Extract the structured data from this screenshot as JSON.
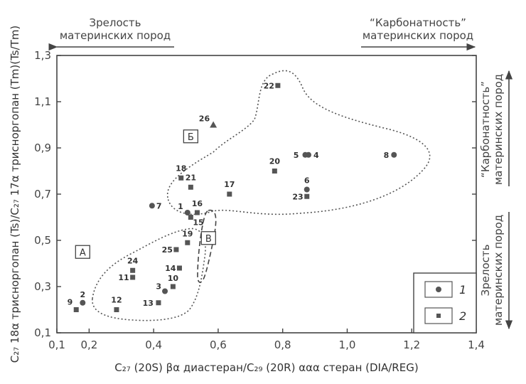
{
  "chart_data": {
    "type": "scatter",
    "xlabel": "C₂₇ (20S) βα диастеран/C₂₉ (20R) ααα стеран (DIA/REG)",
    "ylabel": "C₂₇ 18α трисноргопан (Ts)/C₂₇ 17α трисноргопан (Tm)(Ts/Tm)",
    "xlim": [
      0.1,
      1.4
    ],
    "ylim": [
      0.1,
      1.3
    ],
    "x_ticks": [
      "0,1",
      "0,2",
      "0,4",
      "0,6",
      "0,8",
      "1,0",
      "1,2",
      "1,4"
    ],
    "x_tick_values": [
      0.1,
      0.2,
      0.4,
      0.6,
      0.8,
      1.0,
      1.2,
      1.4
    ],
    "y_ticks": [
      "0,1",
      "0,3",
      "0,5",
      "0,7",
      "0,9",
      "1,1",
      "1,3"
    ],
    "y_tick_values": [
      0.1,
      0.3,
      0.5,
      0.7,
      0.9,
      1.1,
      1.3
    ],
    "top_left": {
      "line1": "Зрелость",
      "line2": "материнских пород"
    },
    "top_right": {
      "line1": "“Карбонатность”",
      "line2": "материнских пород"
    },
    "right_top": {
      "line1": "“Карбонатность”",
      "line2": "материнских пород"
    },
    "right_bottom": {
      "line1": "Зрелость",
      "line2": "материнских пород"
    },
    "regions": [
      {
        "label": "А",
        "x": 0.18,
        "y": 0.45
      },
      {
        "label": "Б",
        "x": 0.515,
        "y": 0.95
      },
      {
        "label": "В",
        "x": 0.57,
        "y": 0.51
      }
    ],
    "legend": [
      {
        "marker": "circle",
        "label": "1"
      },
      {
        "marker": "square",
        "label": "2"
      }
    ],
    "points": [
      {
        "id": "1",
        "x": 0.505,
        "y": 0.62,
        "marker": "circle"
      },
      {
        "id": "2",
        "x": 0.18,
        "y": 0.23,
        "marker": "circle"
      },
      {
        "id": "3",
        "x": 0.435,
        "y": 0.28,
        "marker": "circle"
      },
      {
        "id": "4",
        "x": 0.88,
        "y": 0.87,
        "marker": "circle"
      },
      {
        "id": "5",
        "x": 0.87,
        "y": 0.87,
        "marker": "circle"
      },
      {
        "id": "6",
        "x": 0.875,
        "y": 0.72,
        "marker": "circle"
      },
      {
        "id": "7",
        "x": 0.395,
        "y": 0.65,
        "marker": "circle"
      },
      {
        "id": "8",
        "x": 1.145,
        "y": 0.87,
        "marker": "circle"
      },
      {
        "id": "9",
        "x": 0.16,
        "y": 0.2,
        "marker": "square"
      },
      {
        "id": "10",
        "x": 0.46,
        "y": 0.3,
        "marker": "square"
      },
      {
        "id": "11",
        "x": 0.335,
        "y": 0.34,
        "marker": "square"
      },
      {
        "id": "12",
        "x": 0.285,
        "y": 0.2,
        "marker": "square"
      },
      {
        "id": "13",
        "x": 0.415,
        "y": 0.23,
        "marker": "square"
      },
      {
        "id": "14",
        "x": 0.48,
        "y": 0.38,
        "marker": "square"
      },
      {
        "id": "15",
        "x": 0.515,
        "y": 0.6,
        "marker": "square"
      },
      {
        "id": "16",
        "x": 0.535,
        "y": 0.62,
        "marker": "square"
      },
      {
        "id": "17",
        "x": 0.635,
        "y": 0.7,
        "marker": "square"
      },
      {
        "id": "18",
        "x": 0.485,
        "y": 0.77,
        "marker": "square"
      },
      {
        "id": "19",
        "x": 0.505,
        "y": 0.49,
        "marker": "square"
      },
      {
        "id": "20",
        "x": 0.775,
        "y": 0.8,
        "marker": "square"
      },
      {
        "id": "21",
        "x": 0.515,
        "y": 0.73,
        "marker": "square"
      },
      {
        "id": "22",
        "x": 0.785,
        "y": 1.17,
        "marker": "square"
      },
      {
        "id": "23",
        "x": 0.875,
        "y": 0.69,
        "marker": "square"
      },
      {
        "id": "24",
        "x": 0.335,
        "y": 0.37,
        "marker": "square"
      },
      {
        "id": "25",
        "x": 0.47,
        "y": 0.46,
        "marker": "square"
      },
      {
        "id": "26",
        "x": 0.585,
        "y": 1.0,
        "marker": "triangle"
      }
    ],
    "colors": {
      "marker": "#555555",
      "axis": "#444444",
      "text": "#333333"
    }
  }
}
